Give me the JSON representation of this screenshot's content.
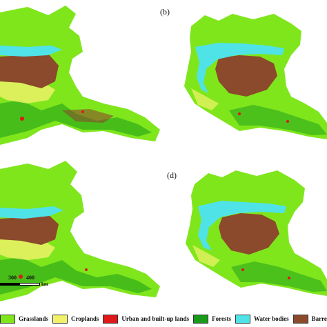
{
  "panels": [
    {
      "label": ""
    },
    {
      "label": "(b)"
    },
    {
      "label": ""
    },
    {
      "label": "(d)"
    }
  ],
  "scale_bar": {
    "ticks": [
      "300",
      "400"
    ],
    "unit": "km"
  },
  "legend": [
    {
      "label": "Grasslands",
      "color": "#7fe61c"
    },
    {
      "label": "Croplands",
      "color": "#f2f26a"
    },
    {
      "label": "Urban and built-up lands",
      "color": "#e01818"
    },
    {
      "label": "Forests",
      "color": "#1a9a1a"
    },
    {
      "label": "Water bodies",
      "color": "#4fe3e8"
    },
    {
      "label": "Barren a",
      "color": "#8b4a2b"
    }
  ]
}
